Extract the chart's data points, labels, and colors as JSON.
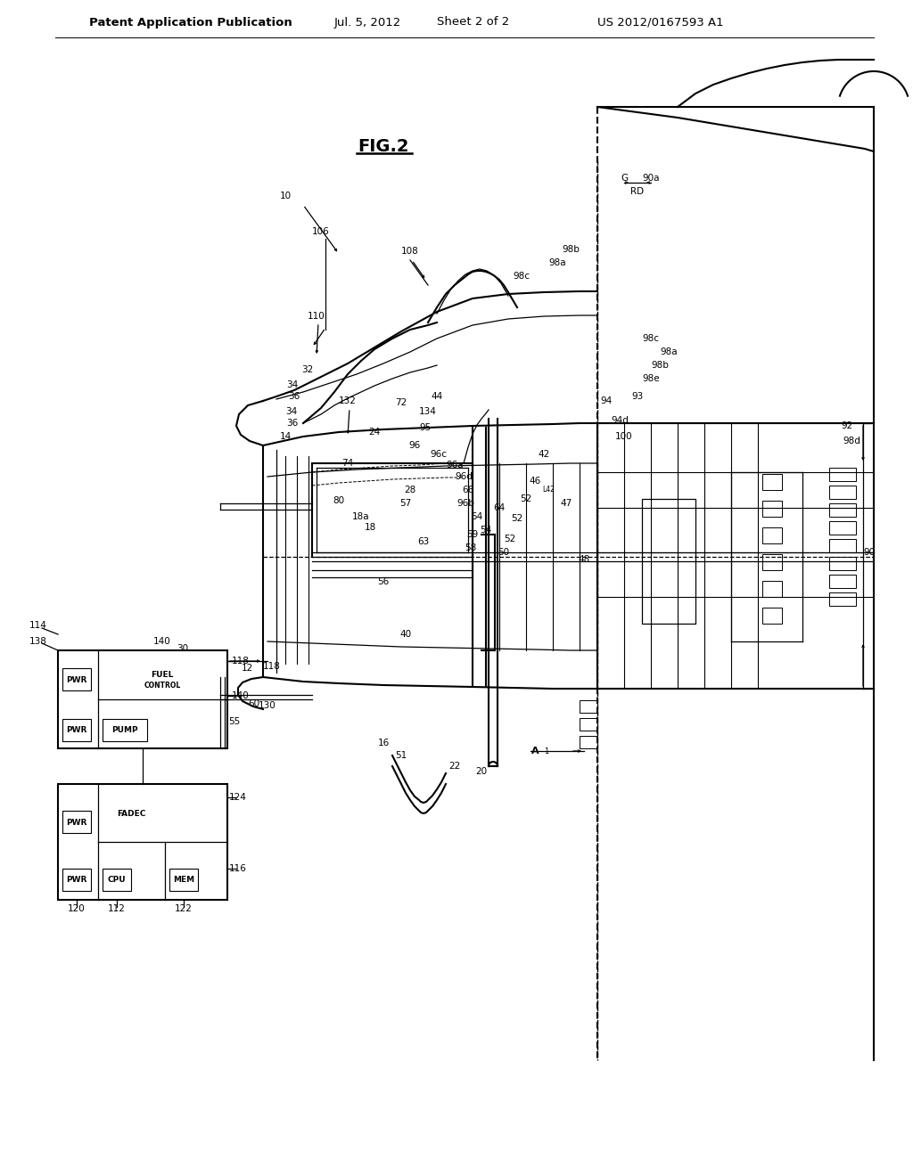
{
  "background_color": "#ffffff",
  "line_color": "#000000",
  "header_text": "Patent Application Publication",
  "header_date": "Jul. 5, 2012",
  "header_sheet": "Sheet 2 of 2",
  "header_patent": "US 2012/0167593 A1",
  "figure_label": "FIG.2",
  "title_fontsize": 9.5,
  "label_fontsize": 7.5,
  "small_fontsize": 6.5,
  "figure_num_fontsize": 13
}
